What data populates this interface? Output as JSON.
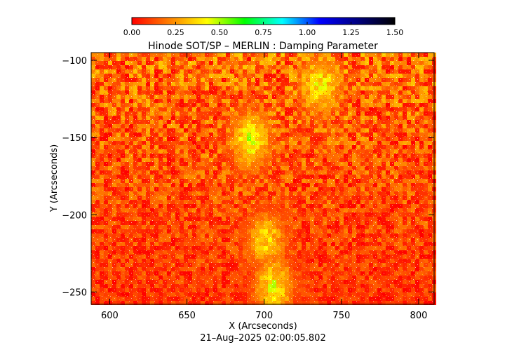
{
  "chart_data": {
    "type": "heatmap",
    "title": "Hinode SOT/SP – MERLIN : Damping Parameter",
    "xlabel": "X (Arcseconds)",
    "ylabel": "Y (Arcseconds)",
    "footer": "21–Aug–2025 02:00:05.802",
    "xlim": [
      588,
      810
    ],
    "ylim": [
      -258,
      -95
    ],
    "x_ticks": [
      600,
      650,
      700,
      750,
      800
    ],
    "y_ticks": [
      -100,
      -150,
      -200,
      -250
    ],
    "x_tick_labels": [
      "600",
      "650",
      "700",
      "750",
      "800"
    ],
    "y_tick_labels": [
      "−100",
      "−150",
      "−200",
      "−250"
    ],
    "colorbar": {
      "min": 0.0,
      "max": 1.5,
      "ticks": [
        0.0,
        0.25,
        0.5,
        0.75,
        1.0,
        1.25,
        1.5
      ],
      "tick_labels": [
        "0.00",
        "0.25",
        "0.50",
        "0.75",
        "1.00",
        "1.25",
        "1.50"
      ],
      "colors": [
        "#ff0000",
        "#ff8000",
        "#ffff00",
        "#00ff00",
        "#00ffff",
        "#0000ff",
        "#000080",
        "#000000"
      ]
    },
    "field_description": {
      "dominant_range": [
        0.0,
        0.35
      ],
      "enhanced_regions": [
        {
          "x": 690,
          "y": -150,
          "value": 0.55
        },
        {
          "x": 735,
          "y": -115,
          "value": 0.5
        },
        {
          "x": 700,
          "y": -215,
          "value": 0.45
        },
        {
          "x": 705,
          "y": -245,
          "value": 0.5
        }
      ]
    }
  }
}
